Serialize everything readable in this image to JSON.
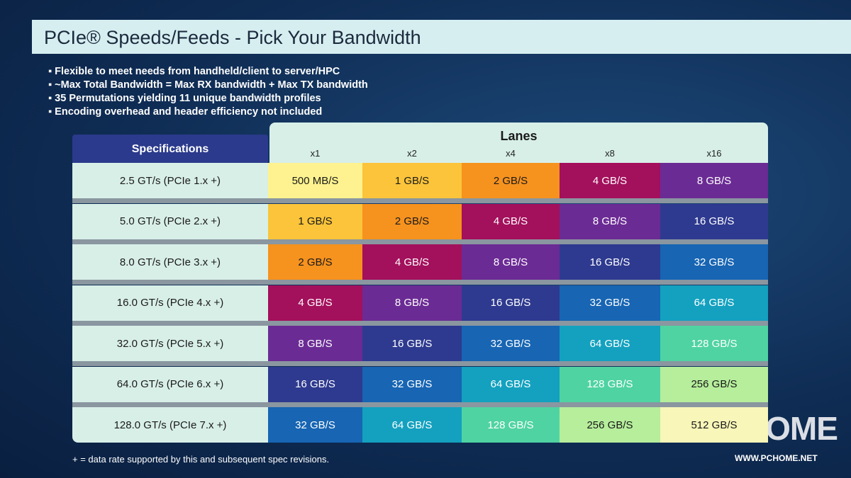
{
  "header": {
    "title": "PCIe® Speeds/Feeds - Pick Your Bandwidth"
  },
  "bullets": [
    "Flexible to meet needs from handheld/client to server/HPC",
    "~Max Total Bandwidth = Max RX bandwidth + Max TX bandwidth",
    "35 Permutations yielding 11 unique bandwidth profiles",
    "Encoding overhead and header efficiency not included"
  ],
  "table": {
    "lanes_label": "Lanes",
    "spec_label": "Specifications",
    "columns": [
      "x1",
      "x2",
      "x4",
      "x8",
      "x16"
    ],
    "rows": [
      {
        "spec": "2.5 GT/s (PCIe 1.x +)",
        "cells": [
          "500 MB/S",
          "1 GB/S",
          "2 GB/S",
          "4 GB/S",
          "8 GB/S"
        ]
      },
      {
        "spec": "5.0 GT/s (PCIe 2.x +)",
        "cells": [
          "1 GB/S",
          "2 GB/S",
          "4 GB/S",
          "8 GB/S",
          "16 GB/S"
        ]
      },
      {
        "spec": "8.0 GT/s (PCIe 3.x +)",
        "cells": [
          "2 GB/S",
          "4 GB/S",
          "8 GB/S",
          "16 GB/S",
          "32 GB/S"
        ]
      },
      {
        "spec": "16.0 GT/s (PCIe 4.x +)",
        "cells": [
          "4 GB/S",
          "8 GB/S",
          "16 GB/S",
          "32 GB/S",
          "64 GB/S"
        ]
      },
      {
        "spec": "32.0 GT/s (PCIe 5.x +)",
        "cells": [
          "8 GB/S",
          "16 GB/S",
          "32 GB/S",
          "64 GB/S",
          "128 GB/S"
        ]
      },
      {
        "spec": "64.0 GT/s (PCIe 6.x +)",
        "cells": [
          "16 GB/S",
          "32 GB/S",
          "64 GB/S",
          "128 GB/S",
          "256 GB/S"
        ]
      },
      {
        "spec": "128.0 GT/s (PCIe 7.x +)",
        "cells": [
          "32 GB/S",
          "64 GB/S",
          "128 GB/S",
          "256 GB/S",
          "512 GB/S"
        ]
      }
    ]
  },
  "footnote": "+ = data rate supported by this and subsequent spec revisions.",
  "watermark": {
    "logo": "PCHOME",
    "url": "WWW.PCHOME.NET"
  }
}
